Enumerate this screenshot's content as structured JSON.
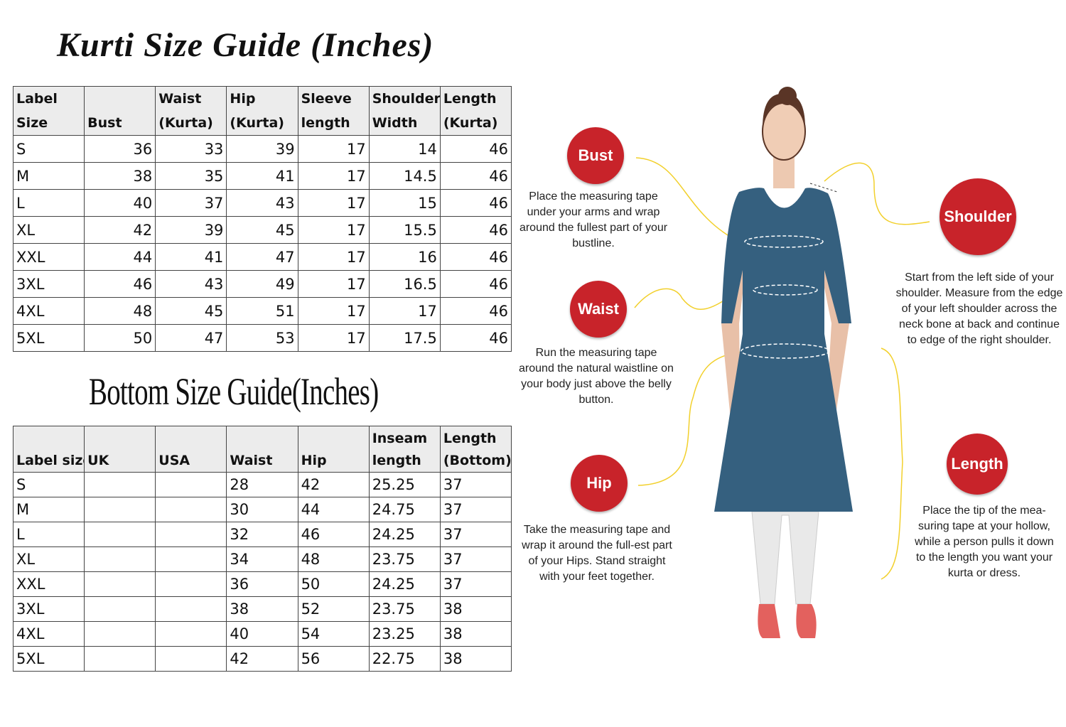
{
  "kurti": {
    "title": "Kurti Size Guide (Inches)",
    "headers": [
      "Label\nSize",
      "Bust",
      "Waist\n(Kurta)",
      "Hip\n(Kurta)",
      "Sleeve\nlength",
      "Shoulder\nWidth",
      "Length\n(Kurta)"
    ],
    "rows": [
      [
        "S",
        "36",
        "33",
        "39",
        "17",
        "14",
        "46"
      ],
      [
        "M",
        "38",
        "35",
        "41",
        "17",
        "14.5",
        "46"
      ],
      [
        "L",
        "40",
        "37",
        "43",
        "17",
        "15",
        "46"
      ],
      [
        "XL",
        "42",
        "39",
        "45",
        "17",
        "15.5",
        "46"
      ],
      [
        "XXL",
        "44",
        "41",
        "47",
        "17",
        "16",
        "46"
      ],
      [
        "3XL",
        "46",
        "43",
        "49",
        "17",
        "16.5",
        "46"
      ],
      [
        "4XL",
        "48",
        "45",
        "51",
        "17",
        "17",
        "46"
      ],
      [
        "5XL",
        "50",
        "47",
        "53",
        "17",
        "17.5",
        "46"
      ]
    ]
  },
  "bottom": {
    "title": "Bottom Size Guide(Inches)",
    "headers": [
      "Label size",
      "UK",
      "USA",
      "Waist",
      "Hip",
      "Inseam\nlength",
      "Length\n(Bottom)"
    ],
    "rows": [
      [
        "S",
        "",
        "",
        "28",
        "42",
        "25.25",
        "37"
      ],
      [
        "M",
        "",
        "",
        "30",
        "44",
        "24.75",
        "37"
      ],
      [
        "L",
        "",
        "",
        "32",
        "46",
        "24.25",
        "37"
      ],
      [
        "XL",
        "",
        "",
        "34",
        "48",
        "23.75",
        "37"
      ],
      [
        "XXL",
        "",
        "",
        "36",
        "50",
        "24.25",
        "37"
      ],
      [
        "3XL",
        "",
        "",
        "38",
        "52",
        "23.75",
        "38"
      ],
      [
        "4XL",
        "",
        "",
        "40",
        "54",
        "23.25",
        "38"
      ],
      [
        "5XL",
        "",
        "",
        "42",
        "56",
        "22.75",
        "38"
      ]
    ]
  },
  "measures": {
    "bust": {
      "label": "Bust",
      "text": "Place the measuring tape under your arms and wrap around the fullest part of your bustline."
    },
    "waist": {
      "label": "Waist",
      "text": "Run the measuring tape around the natural waistline on your body just above the belly button."
    },
    "hip": {
      "label": "Hip",
      "text": "Take the measuring tape and wrap it around the full-est part of your Hips. Stand straight with your feet together."
    },
    "shoulder": {
      "label": "Shoulder",
      "text": "Start from the left side of your shoulder. Measure from the edge of your left shoulder across the neck bone at back and continue to edge of the right shoulder."
    },
    "length": {
      "label": "Length",
      "text": "Place the tip of the mea-suring tape at your hollow, while a person pulls it down to the length you want your kurta or dress."
    }
  },
  "colors": {
    "badge": "#c8232a",
    "dress": "#35607f",
    "arrow": "#f2d02c",
    "header_bg": "#ececec"
  }
}
